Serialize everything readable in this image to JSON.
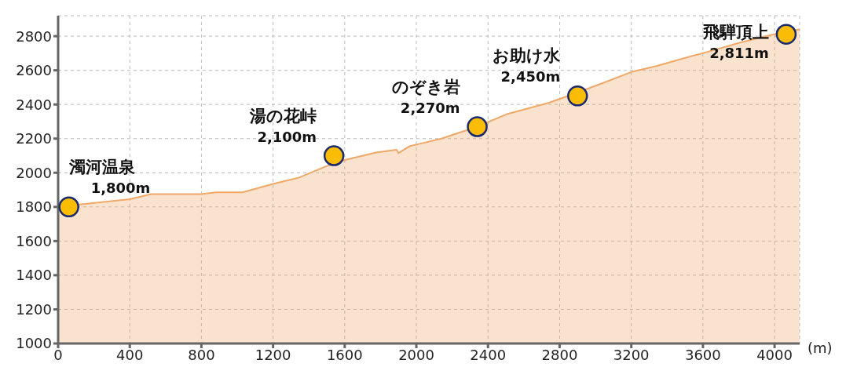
{
  "chart_data": {
    "type": "area",
    "xlabel": "(m)",
    "xlim": [
      0,
      4140
    ],
    "xticks": [
      0,
      400,
      800,
      1200,
      1600,
      2000,
      2400,
      2800,
      3200,
      3600,
      4000
    ],
    "ylim": [
      1000,
      2920
    ],
    "yticks": [
      1000,
      1200,
      1400,
      1600,
      1800,
      2000,
      2200,
      2400,
      2600,
      2800
    ],
    "grid": true,
    "line_style": "dashed",
    "series": [
      {
        "color": "#f0a868",
        "x": [
          0,
          130,
          400,
          520,
          800,
          880,
          1030,
          1200,
          1340,
          1490,
          1600,
          1780,
          1890,
          1900,
          1960,
          2000,
          2140,
          2340,
          2510,
          2740,
          2900,
          3040,
          3200,
          3340,
          3490,
          3650,
          3800,
          3990,
          4140
        ],
        "values": [
          1790,
          1815,
          1845,
          1875,
          1875,
          1885,
          1885,
          1935,
          1970,
          2035,
          2075,
          2120,
          2135,
          2115,
          2155,
          2165,
          2200,
          2270,
          2345,
          2410,
          2470,
          2525,
          2590,
          2625,
          2670,
          2715,
          2760,
          2810,
          2840
        ]
      },
      {
        "type": "scatter",
        "color": "#fbbc05",
        "marker": "circle",
        "x": [
          60,
          1540,
          2340,
          2900,
          4065
        ],
        "values": [
          1800,
          2100,
          2270,
          2450,
          2811
        ],
        "value_labels": [
          "1,800m",
          "2,100m",
          "2,270m",
          "2,450m",
          "2,811m"
        ]
      }
    ],
    "annotations": [
      {
        "text": "濁河温泉",
        "x": 60,
        "y": 1800
      },
      {
        "text": "湯の花峠",
        "x": 1540,
        "y": 2100
      },
      {
        "text": "のぞき岩",
        "x": 2340,
        "y": 2270
      },
      {
        "text": "お助け水",
        "x": 2900,
        "y": 2450
      },
      {
        "text": "飛騨頂上",
        "x": 4065,
        "y": 2811
      }
    ]
  }
}
